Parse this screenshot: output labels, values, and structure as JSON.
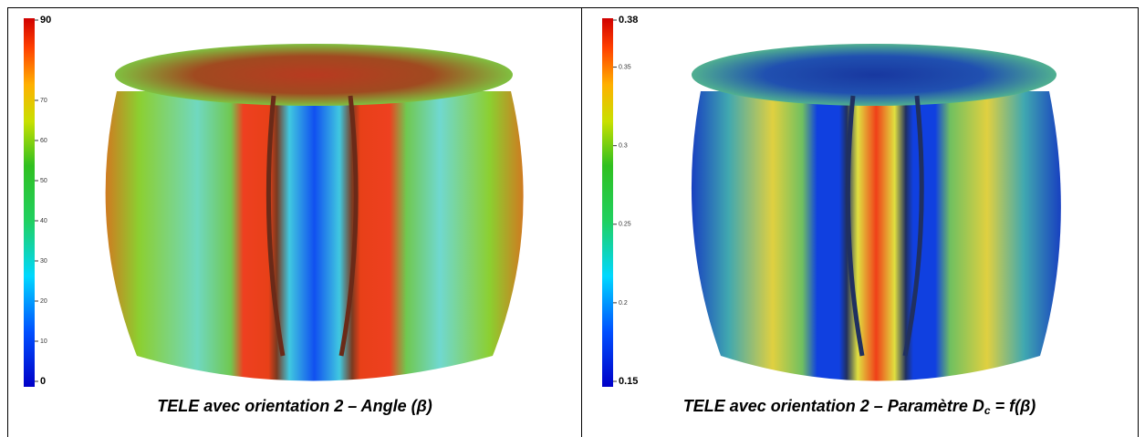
{
  "panels": [
    {
      "colorbar": {
        "range": [
          0,
          90
        ],
        "ticks": [
          90,
          70,
          60,
          50,
          40,
          30,
          20,
          10,
          0
        ]
      },
      "caption": [
        "TELE avec orientation 2 – Angle (β)"
      ]
    },
    {
      "colorbar": {
        "range": [
          0.15,
          0.38
        ],
        "ticks": [
          0.38,
          0.35,
          0.3,
          0.25,
          0.2,
          0.15
        ]
      },
      "caption": [
        "TELE avec orientation 2 – Paramètre D",
        "c",
        " = f(β)"
      ]
    }
  ]
}
